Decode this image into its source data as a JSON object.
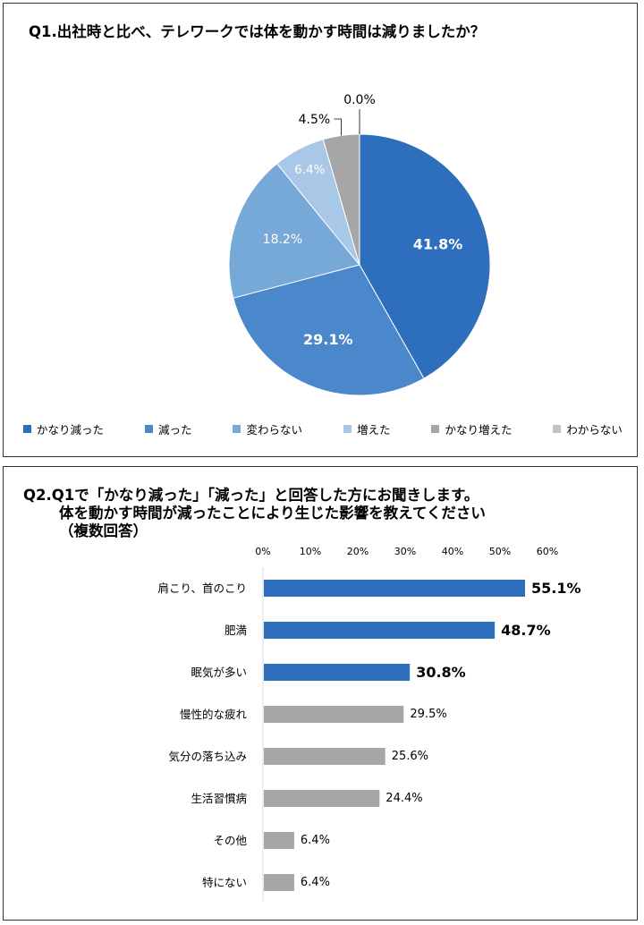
{
  "chart_data": [
    {
      "type": "pie",
      "title": "Q1.出社時と比べ、テレワークでは体を動かす時間は減りましたか？",
      "labels": [
        "かなり減った",
        "減った",
        "変わらない",
        "増えた",
        "かなり増えた",
        "わからない"
      ],
      "values": [
        41.8,
        29.1,
        18.2,
        6.4,
        4.5,
        0.0
      ],
      "value_labels": [
        "41.8%",
        "29.1%",
        "18.2%",
        "6.4%",
        "4.5%",
        "0.0%"
      ],
      "colors": [
        "#2e6fbd",
        "#4a88cb",
        "#76a8d8",
        "#a9c8e8",
        "#a6a6a6",
        "#c2c2c2"
      ],
      "legend": "bottom"
    },
    {
      "type": "bar",
      "orientation": "horizontal",
      "title_lines": [
        "Q2.Q1で「かなり減った」「減った」と回答した方にお聞きします。",
        "体を動かす時間が減ったことにより生じた影響を教えてください",
        "（複数回答）"
      ],
      "categories": [
        "肩こり、首のこり",
        "肥満",
        "眠気が多い",
        "慢性的な疲れ",
        "気分の落ち込み",
        "生活習慣病",
        "その他",
        "特にない"
      ],
      "values": [
        55.1,
        48.7,
        30.8,
        29.5,
        25.6,
        24.4,
        6.4,
        6.4
      ],
      "value_labels": [
        "55.1%",
        "48.7%",
        "30.8%",
        "29.5%",
        "25.6%",
        "24.4%",
        "6.4%",
        "6.4%"
      ],
      "highlight_count": 3,
      "colors": {
        "highlight": "#2e6fbd",
        "normal": "#a6a6a6"
      },
      "xlim": [
        0,
        60
      ],
      "x_ticks": [
        "0%",
        "10%",
        "20%",
        "30%",
        "40%",
        "50%",
        "60%"
      ],
      "x_axis_position": "top",
      "grid": false
    }
  ]
}
